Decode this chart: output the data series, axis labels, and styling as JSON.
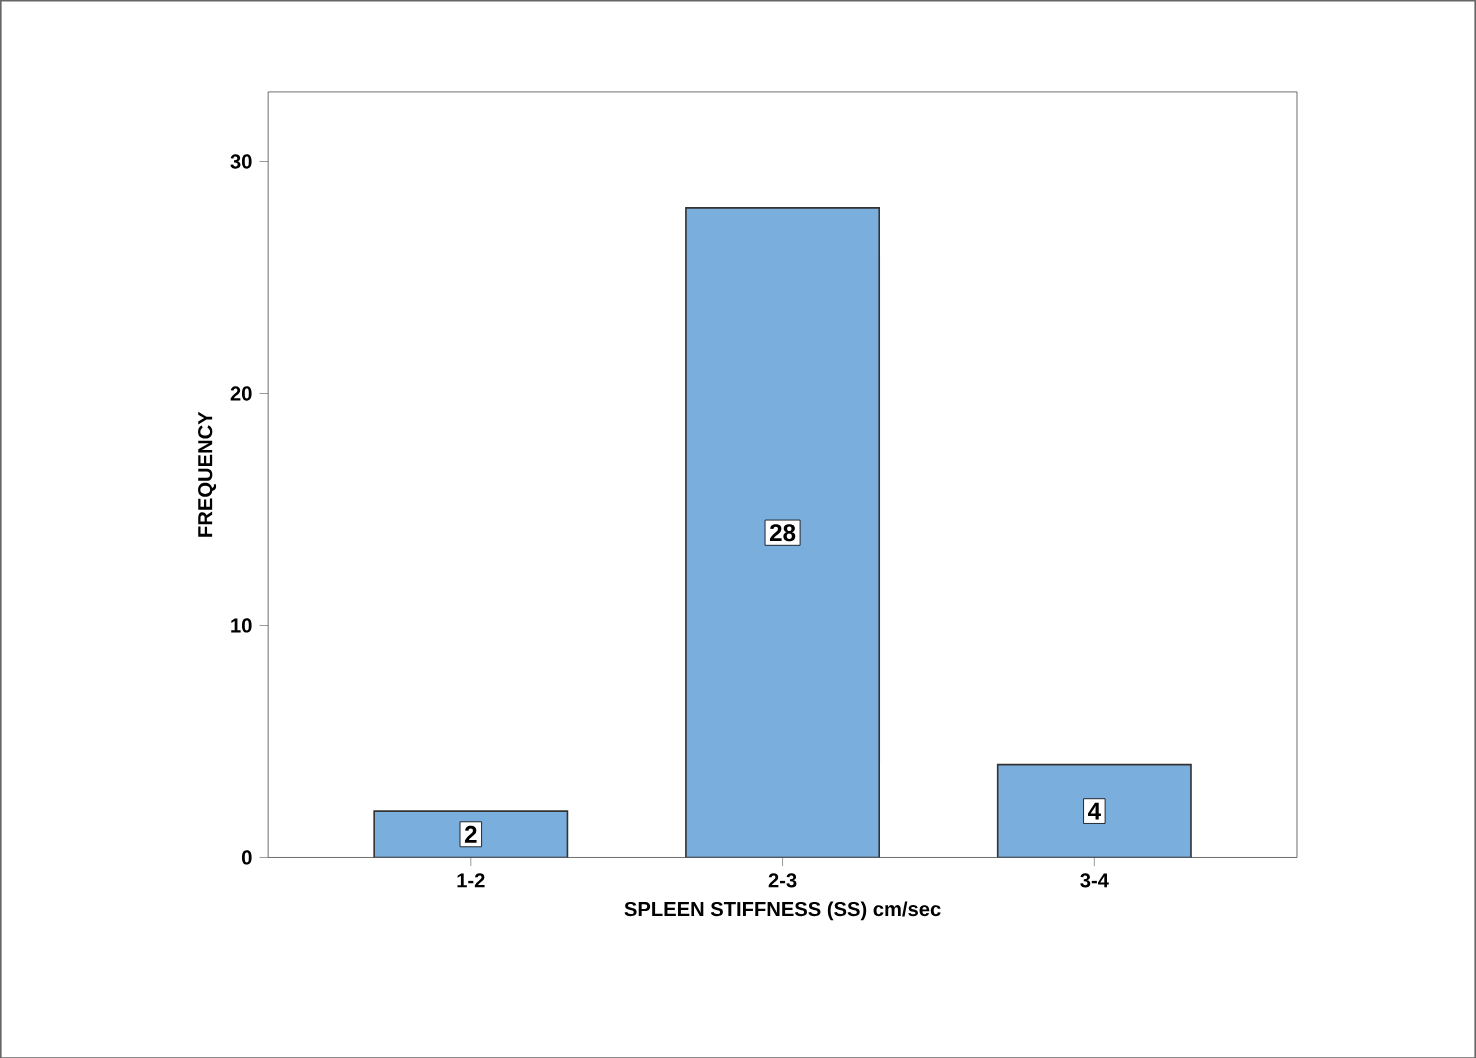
{
  "chart_data": {
    "type": "bar",
    "xlabel": "SPLEEN STIFFNESS (SS) cm/sec",
    "ylabel": "FREQUENCY",
    "categories": [
      "1-2",
      "2-3",
      "3-4"
    ],
    "values": [
      2,
      28,
      4
    ],
    "color": "#7aaedc",
    "ylim": [
      0,
      33
    ],
    "yticks": [
      0,
      10,
      20,
      30
    ],
    "data_labels": true
  }
}
